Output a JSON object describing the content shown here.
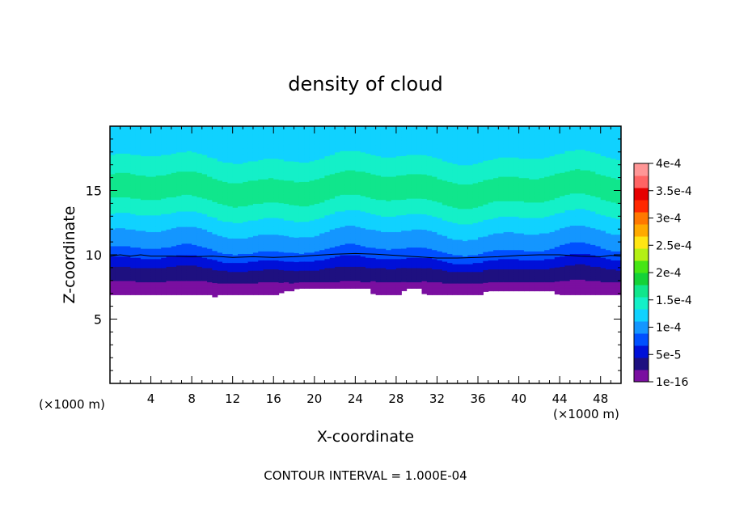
{
  "chart_data": {
    "type": "heatmap",
    "title": "density of cloud",
    "xlabel": "X-coordinate",
    "ylabel": "Z-coordinate",
    "x_unit_left": "(×1000 m)",
    "x_unit_right": "(×1000 m)",
    "xlim": [
      0,
      50
    ],
    "ylim": [
      0,
      20
    ],
    "x_ticks": [
      4,
      8,
      12,
      16,
      20,
      24,
      28,
      32,
      36,
      40,
      44,
      48
    ],
    "y_ticks": [
      5,
      10,
      15
    ],
    "footer": "CONTOUR INTERVAL = 1.000E-04",
    "colorbar": {
      "labels": [
        {
          "value": 1e-16,
          "text": "1e-16"
        },
        {
          "value": 5e-05,
          "text": "5e-5"
        },
        {
          "value": 0.0001,
          "text": "1e-4"
        },
        {
          "value": 0.00015,
          "text": "1.5e-4"
        },
        {
          "value": 0.0002,
          "text": "2e-4"
        },
        {
          "value": 0.00025,
          "text": "2.5e-4"
        },
        {
          "value": 0.0003,
          "text": "3e-4"
        },
        {
          "value": 0.00035,
          "text": "3.5e-4"
        },
        {
          "value": 0.0004,
          "text": "4e-4"
        }
      ],
      "range": [
        0,
        0.0004
      ],
      "colors": [
        "#7a0fa0",
        "#1e1080",
        "#0010d8",
        "#0050ff",
        "#1496ff",
        "#10d2ff",
        "#14f0c8",
        "#10e68c",
        "#14d238",
        "#46e614",
        "#b4f014",
        "#ffe614",
        "#ffaa00",
        "#ff7800",
        "#ff2800",
        "#e60000",
        "#ff6464",
        "#ff9696"
      ]
    },
    "vertical_profile": [
      {
        "z": 6.9,
        "value": 5e-06
      },
      {
        "z": 7.5,
        "value": 1.2e-05
      },
      {
        "z": 8.0,
        "value": 2.5e-05
      },
      {
        "z": 8.6,
        "value": 3.5e-05
      },
      {
        "z": 9.1,
        "value": 5e-05
      },
      {
        "z": 9.6,
        "value": 6.5e-05
      },
      {
        "z": 10.1,
        "value": 8e-05
      },
      {
        "z": 10.6,
        "value": 9.5e-05
      },
      {
        "z": 11.3,
        "value": 0.000105
      },
      {
        "z": 12.0,
        "value": 0.000115
      },
      {
        "z": 12.8,
        "value": 0.000128
      },
      {
        "z": 13.5,
        "value": 0.00015
      },
      {
        "z": 14.5,
        "value": 0.000158
      },
      {
        "z": 15.5,
        "value": 0.00016
      },
      {
        "z": 16.5,
        "value": 0.000152
      },
      {
        "z": 17.2,
        "value": 0.000138
      },
      {
        "z": 18.0,
        "value": 0.000128
      },
      {
        "z": 19.0,
        "value": 0.000118
      },
      {
        "z": 20.0,
        "value": 0.000112
      }
    ],
    "cloud_base_z": [
      {
        "x": 0,
        "z": 6.9
      },
      {
        "x": 10,
        "z": 6.9
      },
      {
        "x": 10.3,
        "z": 6.7
      },
      {
        "x": 10.6,
        "z": 6.9
      },
      {
        "x": 16.5,
        "z": 6.9
      },
      {
        "x": 17,
        "z": 7.2
      },
      {
        "x": 18,
        "z": 7.2
      },
      {
        "x": 18.3,
        "z": 7.4
      },
      {
        "x": 25.5,
        "z": 7.4
      },
      {
        "x": 25.8,
        "z": 6.9
      },
      {
        "x": 28.5,
        "z": 6.9
      },
      {
        "x": 28.9,
        "z": 7.4
      },
      {
        "x": 30.5,
        "z": 7.4
      },
      {
        "x": 30.8,
        "z": 6.9
      },
      {
        "x": 36.5,
        "z": 6.9
      },
      {
        "x": 36.8,
        "z": 7.2
      },
      {
        "x": 43.5,
        "z": 7.2
      },
      {
        "x": 43.8,
        "z": 6.9
      },
      {
        "x": 50,
        "z": 6.9
      }
    ],
    "contour_line": [
      {
        "x": 0,
        "z": 9.9
      },
      {
        "x": 1,
        "z": 10.0
      },
      {
        "x": 2,
        "z": 9.9
      },
      {
        "x": 3,
        "z": 10.0
      },
      {
        "x": 4,
        "z": 9.9
      },
      {
        "x": 6,
        "z": 9.9
      },
      {
        "x": 8,
        "z": 9.85
      },
      {
        "x": 10,
        "z": 9.9
      },
      {
        "x": 12,
        "z": 9.8
      },
      {
        "x": 14,
        "z": 9.85
      },
      {
        "x": 16,
        "z": 9.8
      },
      {
        "x": 18,
        "z": 9.85
      },
      {
        "x": 20,
        "z": 9.95
      },
      {
        "x": 22,
        "z": 10.05
      },
      {
        "x": 24,
        "z": 10.1
      },
      {
        "x": 26,
        "z": 10.05
      },
      {
        "x": 28,
        "z": 9.95
      },
      {
        "x": 30,
        "z": 9.85
      },
      {
        "x": 32,
        "z": 9.75
      },
      {
        "x": 34,
        "z": 9.75
      },
      {
        "x": 36,
        "z": 9.8
      },
      {
        "x": 38,
        "z": 9.85
      },
      {
        "x": 40,
        "z": 9.95
      },
      {
        "x": 42,
        "z": 10.0
      },
      {
        "x": 44,
        "z": 10.0
      },
      {
        "x": 46,
        "z": 9.9
      },
      {
        "x": 48,
        "z": 9.85
      },
      {
        "x": 49,
        "z": 9.95
      },
      {
        "x": 50,
        "z": 9.9
      }
    ]
  }
}
